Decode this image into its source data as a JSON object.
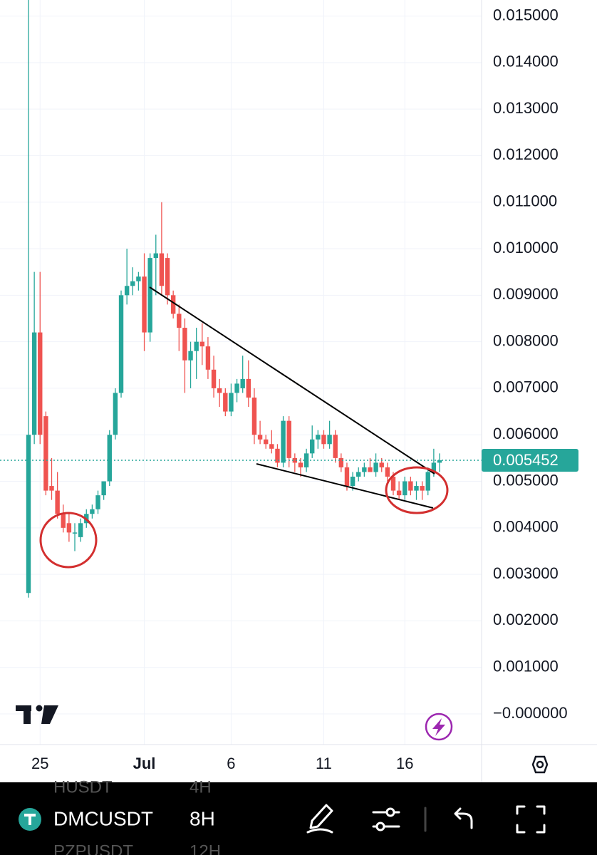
{
  "chart_data": {
    "type": "candlestick",
    "categories": [
      null,
      null,
      "25",
      null,
      null,
      null,
      null,
      null,
      null,
      null,
      null,
      null,
      null,
      null,
      null,
      null,
      null,
      null,
      null,
      null,
      "Jul",
      null,
      null,
      null,
      null,
      null,
      null,
      null,
      null,
      null,
      null,
      null,
      null,
      null,
      null,
      "6",
      null,
      null,
      null,
      null,
      null,
      null,
      null,
      null,
      null,
      null,
      null,
      null,
      null,
      null,
      null,
      "11",
      null,
      null,
      null,
      null,
      null,
      null,
      null,
      null,
      null,
      null,
      null,
      null,
      null,
      "16",
      null,
      null,
      null,
      null,
      null,
      null
    ],
    "open": [
      0.0026,
      0.006,
      0.0082,
      0.0064,
      0.0049,
      0.0048,
      0.0043,
      0.0041,
      0.0039,
      0.0038,
      0.0041,
      0.0043,
      0.0044,
      0.0047,
      0.005,
      0.006,
      0.0069,
      0.009,
      0.0092,
      0.0093,
      0.0094,
      0.0082,
      0.0098,
      0.0099,
      0.0098,
      0.009,
      0.0086,
      0.0083,
      0.0076,
      0.0078,
      0.008,
      0.0079,
      0.0074,
      0.007,
      0.0069,
      0.0065,
      0.0069,
      0.007,
      0.0072,
      0.0068,
      0.006,
      0.0059,
      0.0058,
      0.0057,
      0.0054,
      0.0063,
      0.0055,
      0.0054,
      0.0053,
      0.0056,
      0.0059,
      0.006,
      0.0058,
      0.006,
      0.0055,
      0.0053,
      0.0049,
      0.0051,
      0.0052,
      0.0053,
      0.0052,
      0.0054,
      0.0053,
      0.0051,
      0.0048,
      0.0047,
      0.005,
      0.0048,
      0.0049,
      0.0048,
      0.0052,
      0.0054
    ],
    "high": [
      0.0155,
      0.0095,
      0.0095,
      0.0065,
      0.0055,
      0.0052,
      0.0045,
      0.0043,
      0.0041,
      0.0042,
      0.0044,
      0.0045,
      0.0048,
      0.005,
      0.0061,
      0.007,
      0.0091,
      0.01,
      0.0096,
      0.0095,
      0.0099,
      0.0099,
      0.0103,
      0.011,
      0.0099,
      0.0091,
      0.0088,
      0.0085,
      0.008,
      0.0083,
      0.0084,
      0.0081,
      0.0077,
      0.0072,
      0.007,
      0.0071,
      0.0072,
      0.0077,
      0.0076,
      0.007,
      0.0063,
      0.006,
      0.0061,
      0.0058,
      0.0064,
      0.0064,
      0.0056,
      0.0055,
      0.0057,
      0.0062,
      0.0061,
      0.0061,
      0.0063,
      0.0061,
      0.0056,
      0.0054,
      0.0052,
      0.0053,
      0.0054,
      0.0055,
      0.0056,
      0.0055,
      0.0054,
      0.0052,
      0.005,
      0.0051,
      0.0051,
      0.005,
      0.005,
      0.0053,
      0.0057,
      0.0056
    ],
    "low": [
      0.0025,
      0.0058,
      0.0058,
      0.0047,
      0.0046,
      0.0042,
      0.0039,
      0.0037,
      0.0035,
      0.0037,
      0.004,
      0.0042,
      0.0043,
      0.0046,
      0.0049,
      0.0059,
      0.0068,
      0.0088,
      0.009,
      0.0091,
      0.0078,
      0.008,
      0.009,
      0.009,
      0.0088,
      0.0085,
      0.0078,
      0.0069,
      0.007,
      0.0072,
      0.0075,
      0.0072,
      0.0068,
      0.0066,
      0.0064,
      0.0064,
      0.0067,
      0.0069,
      0.0066,
      0.0058,
      0.0058,
      0.0057,
      0.0056,
      0.0053,
      0.0053,
      0.0053,
      0.0052,
      0.0051,
      0.0052,
      0.0055,
      0.0057,
      0.0057,
      0.0057,
      0.0054,
      0.0052,
      0.0048,
      0.0048,
      0.005,
      0.0051,
      0.0052,
      0.0051,
      0.0052,
      0.005,
      0.0047,
      0.0046,
      0.0046,
      0.0047,
      0.0046,
      0.0046,
      0.0047,
      0.0051,
      0.0052
    ],
    "close": [
      0.006,
      0.0082,
      0.006,
      0.0048,
      0.0048,
      0.0043,
      0.004,
      0.0039,
      0.0039,
      0.0041,
      0.0043,
      0.0044,
      0.0047,
      0.005,
      0.006,
      0.0069,
      0.009,
      0.0092,
      0.0093,
      0.0094,
      0.0082,
      0.0098,
      0.0099,
      0.0092,
      0.009,
      0.0086,
      0.0083,
      0.0076,
      0.0078,
      0.008,
      0.0079,
      0.0074,
      0.007,
      0.0069,
      0.0065,
      0.0069,
      0.0071,
      0.0072,
      0.0068,
      0.006,
      0.0059,
      0.0058,
      0.0057,
      0.0054,
      0.0063,
      0.0055,
      0.0054,
      0.0053,
      0.0056,
      0.0059,
      0.006,
      0.0058,
      0.006,
      0.0055,
      0.0053,
      0.0049,
      0.0051,
      0.0052,
      0.0053,
      0.0052,
      0.0054,
      0.0053,
      0.0051,
      0.0048,
      0.0047,
      0.005,
      0.0048,
      0.0049,
      0.0048,
      0.0052,
      0.0054,
      0.005452
    ],
    "up_color": "#26a69a",
    "down_color": "#ef5350",
    "ylim": [
      -0.000658,
      0.015345
    ],
    "yticks": [
      {
        "value": 0.015,
        "label": "0.015000"
      },
      {
        "value": 0.014,
        "label": "0.014000"
      },
      {
        "value": 0.013,
        "label": "0.013000"
      },
      {
        "value": 0.012,
        "label": "0.012000"
      },
      {
        "value": 0.011,
        "label": "0.011000"
      },
      {
        "value": 0.01,
        "label": "0.010000"
      },
      {
        "value": 0.009,
        "label": "0.009000"
      },
      {
        "value": 0.008,
        "label": "0.008000"
      },
      {
        "value": 0.007,
        "label": "0.007000"
      },
      {
        "value": 0.006,
        "label": "0.006000"
      },
      {
        "value": 0.005,
        "label": "0.005000"
      },
      {
        "value": 0.004,
        "label": "0.004000"
      },
      {
        "value": 0.003,
        "label": "0.003000"
      },
      {
        "value": 0.002,
        "label": "0.002000"
      },
      {
        "value": 0.001,
        "label": "0.001000"
      },
      {
        "value": 0,
        "label": "−0.000000"
      }
    ],
    "last_price": 0.005452,
    "grid": true
  },
  "toolbar": {
    "symbol": "DMCUSDT",
    "interval": "8H",
    "prev_symbol": "HUSDT",
    "prev_interval": "4H",
    "next_symbol": "PZPUSDT",
    "next_interval": "12H"
  }
}
